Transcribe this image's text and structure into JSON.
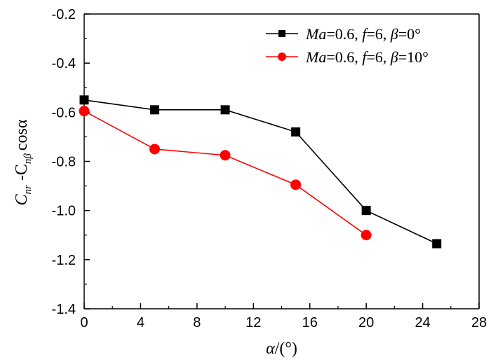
{
  "chart_data": {
    "type": "line",
    "title": "",
    "xlabel_italic": "α",
    "xlabel_rest": "/(°)",
    "ylabel_parts": [
      "C",
      "nr",
      " -C",
      "nβ",
      "cosα"
    ],
    "xlim": [
      0,
      28
    ],
    "ylim": [
      -1.4,
      -0.2
    ],
    "x_ticks": [
      0,
      4,
      8,
      12,
      16,
      20,
      24,
      28
    ],
    "y_ticks": [
      -1.4,
      -1.2,
      -1.0,
      -0.8,
      -0.6,
      -0.4,
      -0.2
    ],
    "y_tick_labels": [
      "-1.4",
      "-1.2",
      "-1.0",
      "-0.8",
      "-0.6",
      "-0.4",
      "-0.2"
    ],
    "grid": false,
    "legend_position": "top-right",
    "series": [
      {
        "name": "Ma=0.6, f=6, β=0°",
        "legend_parts": [
          [
            "Ma",
            true
          ],
          [
            "=0.6, ",
            false
          ],
          [
            "f",
            true
          ],
          [
            "=6, ",
            false
          ],
          [
            "β",
            true
          ],
          [
            "=0°",
            false
          ]
        ],
        "marker": "square",
        "color": "#000000",
        "x": [
          0,
          5,
          10,
          15,
          20,
          25
        ],
        "y": [
          -0.55,
          -0.59,
          -0.59,
          -0.68,
          -1.0,
          -1.135
        ]
      },
      {
        "name": "Ma=0.6, f=6, β=10°",
        "legend_parts": [
          [
            "Ma",
            true
          ],
          [
            "=0.6, ",
            false
          ],
          [
            "f",
            true
          ],
          [
            "=6, ",
            false
          ],
          [
            "β",
            true
          ],
          [
            "=10°",
            false
          ]
        ],
        "marker": "circle",
        "color": "#ff0000",
        "x": [
          0,
          5,
          10,
          15,
          20
        ],
        "y": [
          -0.595,
          -0.75,
          -0.775,
          -0.895,
          -1.1
        ]
      }
    ]
  }
}
